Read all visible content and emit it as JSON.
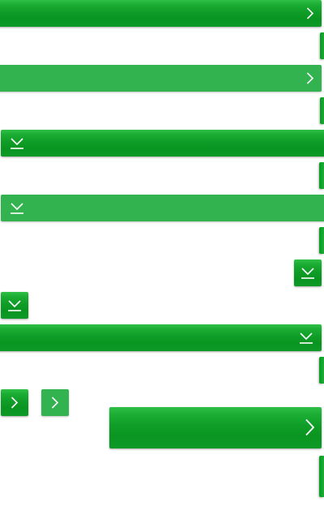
{
  "colors": {
    "button_green_top": "#2fbf47",
    "button_green_bottom": "#0a9521",
    "button_green_flat": "#32b350",
    "icon_white": "#ffffff",
    "background": "#ffffff"
  },
  "icons": {
    "chevron": "chevron-right-icon",
    "download": "download-icon"
  },
  "controls": {
    "bar1": {
      "icon": "chevron-right-icon"
    },
    "bar2": {
      "icon": "chevron-right-icon"
    },
    "bar3": {
      "icon": "download-icon"
    },
    "bar4": {
      "icon": "download-icon"
    },
    "square1": {
      "icon": "download-icon"
    },
    "square2": {
      "icon": "download-icon"
    },
    "bar5": {
      "icon": "download-icon"
    },
    "square3": {
      "icon": "chevron-right-icon"
    },
    "square4": {
      "icon": "chevron-right-icon"
    },
    "big_bar": {
      "icon": "chevron-right-icon"
    }
  }
}
